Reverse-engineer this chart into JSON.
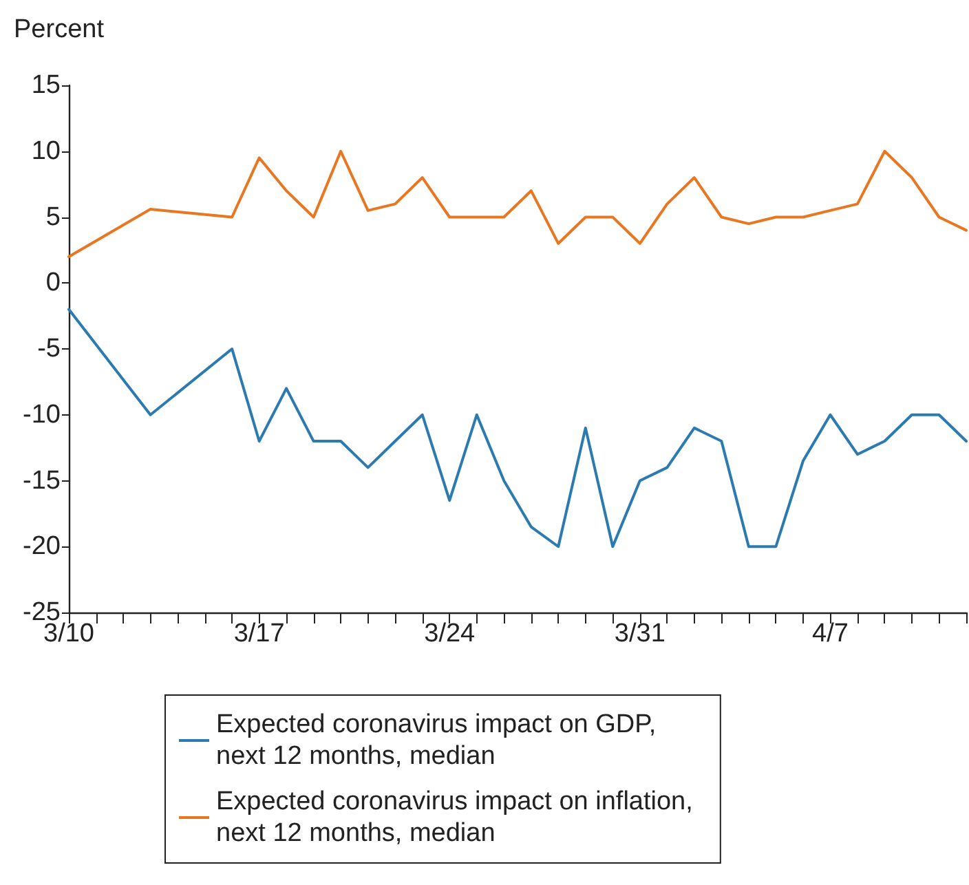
{
  "chart_data": {
    "type": "line",
    "ylabel": "Percent",
    "x": [
      "--03-10",
      "--03-13",
      "--03-16",
      "--03-17",
      "--03-18",
      "--03-19",
      "--03-20",
      "--03-21",
      "--03-22",
      "--03-23",
      "--03-24",
      "--03-25",
      "--03-26",
      "--03-27",
      "--03-28",
      "--03-29",
      "--03-30",
      "--03-31",
      "--04-01",
      "--04-02",
      "--04-03",
      "--04-04",
      "--04-05",
      "--04-06",
      "--04-07",
      "--04-08",
      "--04-09",
      "--04-10",
      "--04-11",
      "--04-12"
    ],
    "series": [
      {
        "name": "Expected coronavirus impact on GDP,\nnext 12 months, median",
        "color": "#2b7bb0",
        "values": [
          -2,
          -10,
          -5,
          -12,
          -8,
          -12,
          -12,
          -14,
          -12,
          -10,
          -16.5,
          -10,
          -15,
          -18.5,
          -20,
          -11,
          -20,
          -15,
          -14,
          -11,
          -12,
          -20,
          -20,
          -13.5,
          -10,
          -13,
          -12,
          -10,
          -10,
          -12
        ]
      },
      {
        "name": "Expected coronavirus impact on inflation,\nnext 12 months, median",
        "color": "#e87722",
        "values": [
          2,
          5.6,
          5,
          9.5,
          7,
          5,
          10,
          5.5,
          6,
          8,
          5,
          5,
          5,
          7,
          3,
          5,
          5,
          3,
          6,
          8,
          5,
          4.5,
          5,
          5,
          5.5,
          6,
          10,
          8,
          5,
          4
        ]
      }
    ],
    "xlim": [
      "--03-10",
      "--04-12"
    ],
    "xticks": [
      {
        "value": "--03-10",
        "label": "3/10"
      },
      {
        "value": "--03-11",
        "label": null
      },
      {
        "value": "--03-12",
        "label": null
      },
      {
        "value": "--03-13",
        "label": null
      },
      {
        "value": "--03-14",
        "label": null
      },
      {
        "value": "--03-15",
        "label": null
      },
      {
        "value": "--03-16",
        "label": null
      },
      {
        "value": "--03-17",
        "label": "3/17"
      },
      {
        "value": "--03-18",
        "label": null
      },
      {
        "value": "--03-19",
        "label": null
      },
      {
        "value": "--03-20",
        "label": null
      },
      {
        "value": "--03-21",
        "label": null
      },
      {
        "value": "--03-22",
        "label": null
      },
      {
        "value": "--03-23",
        "label": null
      },
      {
        "value": "--03-24",
        "label": "3/24"
      },
      {
        "value": "--03-25",
        "label": null
      },
      {
        "value": "--03-26",
        "label": null
      },
      {
        "value": "--03-27",
        "label": null
      },
      {
        "value": "--03-28",
        "label": null
      },
      {
        "value": "--03-29",
        "label": null
      },
      {
        "value": "--03-30",
        "label": null
      },
      {
        "value": "--03-31",
        "label": "3/31"
      },
      {
        "value": "--04-01",
        "label": null
      },
      {
        "value": "--04-02",
        "label": null
      },
      {
        "value": "--04-03",
        "label": null
      },
      {
        "value": "--04-04",
        "label": null
      },
      {
        "value": "--04-05",
        "label": null
      },
      {
        "value": "--04-06",
        "label": null
      },
      {
        "value": "--04-07",
        "label": "4/7"
      },
      {
        "value": "--04-08",
        "label": null
      },
      {
        "value": "--04-09",
        "label": null
      },
      {
        "value": "--04-10",
        "label": null
      },
      {
        "value": "--04-11",
        "label": null
      },
      {
        "value": "--04-12",
        "label": null
      }
    ],
    "ylim": [
      -25,
      15
    ],
    "yticks": [
      -25,
      -20,
      -15,
      -10,
      -5,
      0,
      5,
      10,
      15
    ],
    "grid": false,
    "legend": "bottom",
    "marker": "none",
    "line_style": "solid"
  }
}
